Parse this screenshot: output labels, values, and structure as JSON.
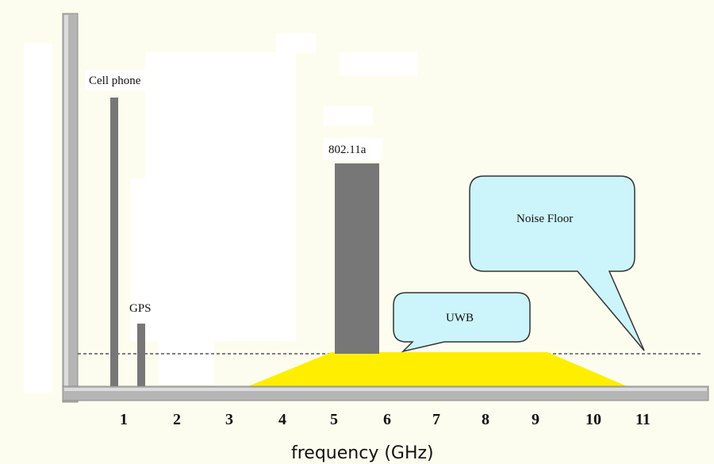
{
  "labels": {
    "cell_phone": "Cell phone",
    "gps": "GPS",
    "wifi": "802.11a",
    "uwb": "UWB",
    "noise_floor": "Noise Floor"
  },
  "x_axis": {
    "title": "frequency (GHz)",
    "ticks": [
      "1",
      "2",
      "3",
      "4",
      "5",
      "6",
      "7",
      "8",
      "9",
      "10",
      "11"
    ]
  },
  "colors": {
    "background": "#fdfdef",
    "axis": "#b5b5b5",
    "bar": "#777777",
    "uwb_fill": "#ffee00",
    "callout_fill": "#ccf4fb",
    "noise_line": "#555555"
  }
}
